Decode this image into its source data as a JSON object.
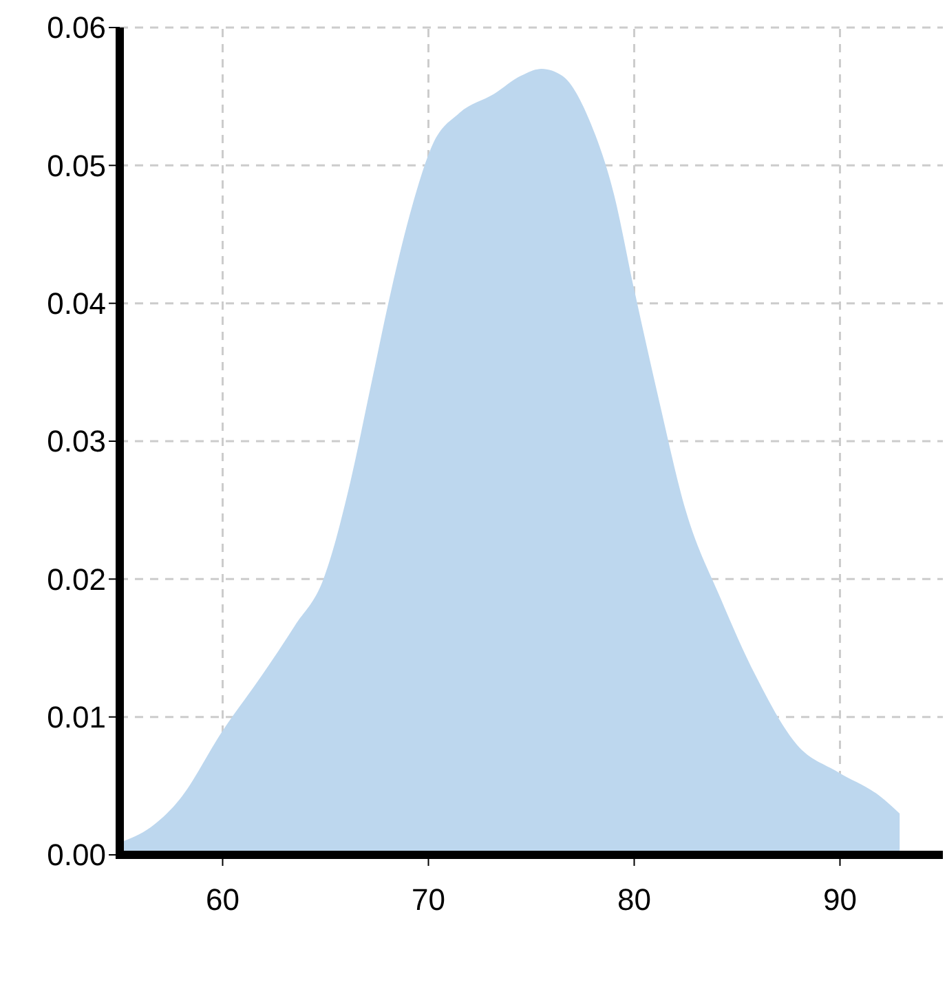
{
  "chart_data": {
    "type": "area",
    "xlim": [
      55,
      95
    ],
    "xticks": [
      60,
      70,
      80,
      90
    ],
    "ylim": [
      0,
      0.06
    ],
    "yticks": [
      {
        "value": 0,
        "label": "0.00"
      },
      {
        "value": 0.01,
        "label": "0.01"
      },
      {
        "value": 0.02,
        "label": "0.02"
      },
      {
        "value": 0.03,
        "label": "0.03"
      },
      {
        "value": 0.04,
        "label": "0.04"
      },
      {
        "value": 0.05,
        "label": "0.05"
      },
      {
        "value": 0.06,
        "label": "0.06"
      }
    ],
    "grid": true,
    "line_style": "dashed",
    "series": [
      {
        "color": "#bdd7ee",
        "x": [
          55,
          56.5,
          57.9,
          60,
          61.9,
          63.5,
          64.9,
          66.2,
          67.2,
          68.2,
          69.2,
          70.2,
          71.5,
          73.2,
          74.5,
          75.5,
          76.5,
          77.9,
          79,
          80,
          81.2,
          82.5,
          84.2,
          85.9,
          87.9,
          89.9,
          91.9,
          92.9
        ],
        "values": [
          0.0009,
          0.002,
          0.004,
          0.009,
          0.013,
          0.0166,
          0.02,
          0.027,
          0.034,
          0.041,
          0.047,
          0.0515,
          0.0538,
          0.0552,
          0.0565,
          0.057,
          0.0565,
          0.053,
          0.048,
          0.041,
          0.033,
          0.025,
          0.0186,
          0.013,
          0.008,
          0.006,
          0.0043,
          0.003
        ]
      }
    ]
  }
}
